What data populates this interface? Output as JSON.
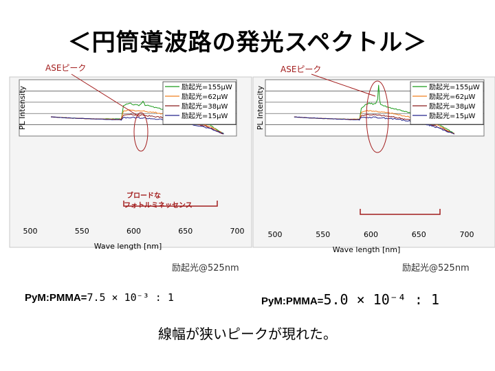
{
  "slide": {
    "title": "＜円筒導波路の発光スペクトル＞",
    "conclusion": "線幅が狭いピークが現れた。"
  },
  "colors": {
    "series": [
      "#1a9a1a",
      "#f07f1e",
      "#8b1b1b",
      "#23238c"
    ],
    "annotation": "#a21c1c"
  },
  "chart_data": [
    {
      "type": "line",
      "xlabel": "Wave length [nm]",
      "ylabel": "PL Intensity",
      "xlim": [
        500,
        700
      ],
      "xticks": [
        500,
        550,
        600,
        650,
        700
      ],
      "grid": true,
      "legend_position": "top-right",
      "series": [
        {
          "name": "励起光=155μW",
          "x": [
            520,
            540,
            560,
            580,
            588,
            590,
            593,
            597,
            600,
            605,
            607,
            609,
            611,
            615,
            620,
            630,
            640,
            650,
            660,
            670,
            680,
            687
          ],
          "y": [
            5.0,
            4.7,
            4.5,
            4.5,
            4.5,
            7.8,
            8.3,
            8.5,
            8.2,
            8.0,
            8.4,
            9.2,
            8.1,
            7.9,
            7.5,
            6.9,
            6.3,
            5.6,
            4.7,
            3.4,
            1.8,
            0.7
          ]
        },
        {
          "name": "励起光=62μW",
          "x": [
            520,
            540,
            560,
            580,
            588,
            590,
            595,
            600,
            610,
            620,
            630,
            640,
            650,
            660,
            670,
            680,
            687
          ],
          "y": [
            5.0,
            4.7,
            4.5,
            4.4,
            4.4,
            6.4,
            6.8,
            6.7,
            6.5,
            6.2,
            5.7,
            5.2,
            4.6,
            3.9,
            2.9,
            1.6,
            0.6
          ]
        },
        {
          "name": "励起光=38μW",
          "x": [
            520,
            540,
            560,
            580,
            588,
            590,
            595,
            600,
            610,
            620,
            630,
            640,
            650,
            660,
            670,
            680,
            687
          ],
          "y": [
            5.0,
            4.7,
            4.5,
            4.3,
            4.3,
            5.3,
            5.6,
            5.6,
            5.4,
            5.1,
            4.8,
            4.4,
            3.9,
            3.3,
            2.5,
            1.4,
            0.6
          ]
        },
        {
          "name": "励起光=15μW",
          "x": [
            520,
            540,
            560,
            580,
            588,
            590,
            595,
            600,
            610,
            620,
            630,
            640,
            650,
            660,
            670,
            680,
            687
          ],
          "y": [
            5.0,
            4.7,
            4.5,
            4.3,
            4.3,
            4.7,
            4.8,
            4.8,
            4.7,
            4.5,
            4.2,
            3.9,
            3.4,
            2.9,
            2.2,
            1.3,
            0.5
          ]
        }
      ],
      "annotations": {
        "peak_label": "ASEピーク",
        "broad_label_1": "ブロードな",
        "broad_label_2": "フォトルミネッセンス"
      },
      "excitation": "励起光@525nm",
      "ratio_label": "PyM:PMMA=",
      "ratio_value": "7.5 × 10⁻³ : 1"
    },
    {
      "type": "line",
      "xlabel": "Wave length [nm]",
      "ylabel": "PL Intencity",
      "xlim": [
        500,
        700
      ],
      "xticks": [
        500,
        550,
        600,
        650,
        700
      ],
      "grid": true,
      "legend_position": "top-right",
      "series": [
        {
          "name": "励起光=155μW",
          "x": [
            520,
            540,
            560,
            580,
            588,
            590,
            594,
            598,
            602,
            605,
            607,
            608,
            609,
            610,
            612,
            615,
            620,
            630,
            640,
            650,
            660,
            670,
            680,
            687
          ],
          "y": [
            5.0,
            4.7,
            4.5,
            4.4,
            4.4,
            7.2,
            8.2,
            8.6,
            8.4,
            8.6,
            9.5,
            13.5,
            9.6,
            8.2,
            8.0,
            7.8,
            7.4,
            6.8,
            6.1,
            5.3,
            4.3,
            3.1,
            1.7,
            0.7
          ]
        },
        {
          "name": "励起光=62μW",
          "x": [
            520,
            540,
            560,
            580,
            588,
            590,
            595,
            600,
            610,
            620,
            630,
            640,
            650,
            660,
            670,
            680,
            687
          ],
          "y": [
            5.0,
            4.7,
            4.5,
            4.4,
            4.4,
            6.2,
            6.6,
            6.6,
            6.3,
            6.0,
            5.5,
            5.0,
            4.4,
            3.7,
            2.8,
            1.5,
            0.6
          ]
        },
        {
          "name": "励起光=38μW",
          "x": [
            520,
            540,
            560,
            580,
            588,
            590,
            595,
            600,
            610,
            620,
            630,
            640,
            650,
            660,
            670,
            680,
            687
          ],
          "y": [
            5.0,
            4.7,
            4.5,
            4.3,
            4.3,
            5.3,
            5.6,
            5.6,
            5.4,
            5.1,
            4.7,
            4.3,
            3.8,
            3.2,
            2.4,
            1.3,
            0.5
          ]
        },
        {
          "name": "励起光=15μW",
          "x": [
            520,
            540,
            560,
            580,
            588,
            590,
            595,
            600,
            610,
            620,
            630,
            640,
            650,
            660,
            670,
            680,
            687
          ],
          "y": [
            5.0,
            4.7,
            4.5,
            4.3,
            4.3,
            4.8,
            4.9,
            4.9,
            4.8,
            4.6,
            4.3,
            3.9,
            3.4,
            2.9,
            2.2,
            1.2,
            0.5
          ]
        }
      ],
      "annotations": {
        "peak_label": "ASEピーク"
      },
      "excitation": "励起光@525nm",
      "ratio_label": "PyM:PMMA=",
      "ratio_value": "5.0 × 10⁻⁴ : 1"
    }
  ]
}
